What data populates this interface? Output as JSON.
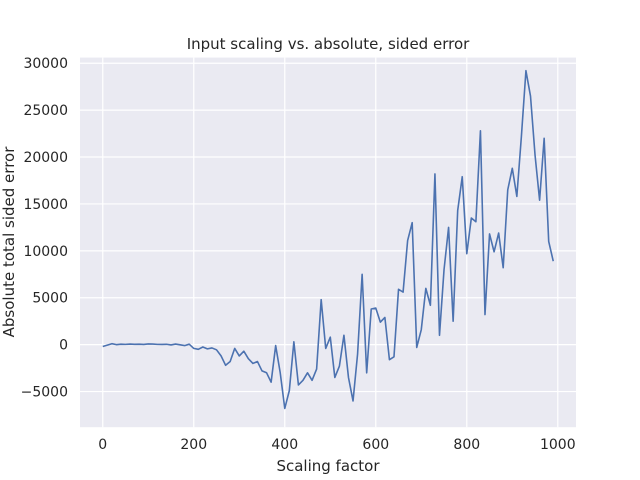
{
  "chart_data": {
    "type": "line",
    "title": "Input scaling vs. absolute, sided error",
    "xlabel": "Scaling factor",
    "ylabel": "Absolute total sided error",
    "xlim": [
      -50,
      1040
    ],
    "ylim": [
      -8800,
      30600
    ],
    "xticks": [
      0,
      200,
      400,
      600,
      800,
      1000
    ],
    "xtick_labels": [
      "0",
      "200",
      "400",
      "600",
      "800",
      "1000"
    ],
    "yticks": [
      -5000,
      0,
      5000,
      10000,
      15000,
      20000,
      25000,
      30000
    ],
    "ytick_labels": [
      "−5000",
      "0",
      "5000",
      "10000",
      "15000",
      "20000",
      "25000",
      "30000"
    ],
    "grid": true,
    "background": "#eaeaf2",
    "grid_color": "#ffffff",
    "line_color": "#4c72b0",
    "series": [
      {
        "x": [
          0,
          10,
          20,
          30,
          40,
          50,
          60,
          70,
          80,
          90,
          100,
          110,
          120,
          130,
          140,
          150,
          160,
          170,
          180,
          190,
          200,
          210,
          220,
          230,
          240,
          250,
          260,
          270,
          280,
          290,
          300,
          310,
          320,
          330,
          340,
          350,
          360,
          370,
          380,
          390,
          400,
          410,
          420,
          430,
          440,
          450,
          460,
          470,
          480,
          490,
          500,
          510,
          520,
          530,
          540,
          550,
          560,
          570,
          580,
          590,
          600,
          610,
          620,
          630,
          640,
          650,
          660,
          670,
          680,
          690,
          700,
          710,
          720,
          730,
          740,
          750,
          760,
          770,
          780,
          790,
          800,
          810,
          820,
          830,
          840,
          850,
          860,
          870,
          880,
          890,
          900,
          910,
          920,
          930,
          940,
          950,
          960,
          970,
          980,
          990
        ],
        "y": [
          -200,
          -50,
          100,
          0,
          50,
          30,
          60,
          40,
          50,
          20,
          80,
          60,
          30,
          20,
          40,
          -30,
          60,
          -20,
          -100,
          50,
          -400,
          -500,
          -250,
          -450,
          -350,
          -550,
          -1200,
          -2200,
          -1800,
          -400,
          -1200,
          -700,
          -1500,
          -2000,
          -1800,
          -2800,
          -3000,
          -4000,
          -100,
          -3000,
          -6800,
          -4900,
          300,
          -4300,
          -3800,
          -3000,
          -3800,
          -2600,
          4800,
          -400,
          800,
          -3500,
          -2300,
          1000,
          -3500,
          -6000,
          -1000,
          7500,
          -3000,
          3800,
          3900,
          2400,
          2900,
          -1600,
          -1300,
          5900,
          5600,
          11100,
          13000,
          -300,
          1600,
          6000,
          4200,
          18200,
          1000,
          8000,
          12500,
          2500,
          14300,
          17900,
          9700,
          13500,
          13100,
          22800,
          3200,
          11800,
          9900,
          11900,
          8200,
          16500,
          18800,
          15800,
          22200,
          29200,
          26500,
          20200,
          15400,
          22000,
          11000,
          8900
        ]
      }
    ]
  }
}
